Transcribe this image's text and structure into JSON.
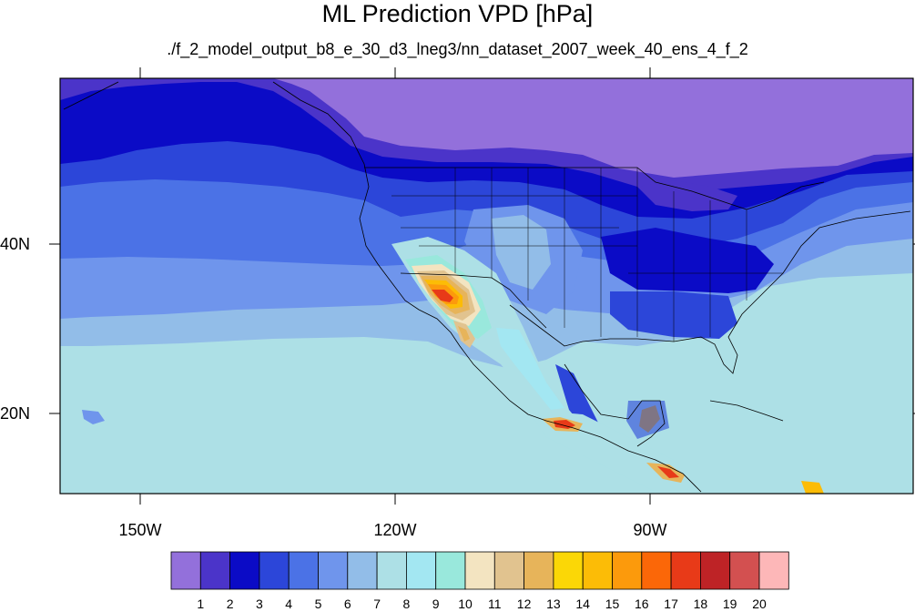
{
  "title": "ML Prediction VPD [hPa]",
  "subtitle": "./f_2_model_output_b8_e_30_d3_lneg3/nn_dataset_2007_week_40_ens_4_f_2",
  "map": {
    "projection": "cylindrical-equidistant",
    "lon_range": [
      -160,
      -56
    ],
    "lat_range": [
      11,
      60
    ],
    "lat_labels": [
      "40N",
      "20N"
    ],
    "lon_labels": [
      "150W",
      "120W",
      "90W"
    ],
    "features": [
      "coastlines",
      "us-state-borders",
      "country-borders"
    ]
  },
  "colorbar": {
    "labels": [
      "1",
      "2",
      "3",
      "4",
      "5",
      "6",
      "7",
      "8",
      "9",
      "10",
      "11",
      "12",
      "13",
      "14",
      "15",
      "16",
      "17",
      "18",
      "19",
      "20"
    ],
    "colors": [
      "#9370db",
      "#4b34c9",
      "#0b0bc6",
      "#2c46d9",
      "#4b72e6",
      "#6f95ec",
      "#92bde8",
      "#ade0e6",
      "#a3e7f2",
      "#99e8dc",
      "#f3e4c1",
      "#e1c38f",
      "#e7b45a",
      "#fbd706",
      "#fcbc06",
      "#fc9a0c",
      "#fb6708",
      "#e83a18",
      "#be2326",
      "#d35050",
      "#fdb7b8"
    ]
  }
}
